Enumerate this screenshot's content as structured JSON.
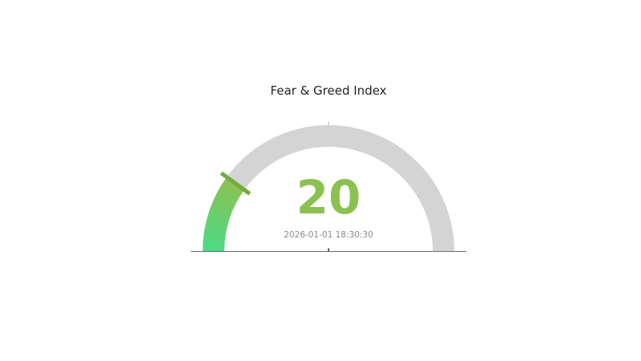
{
  "chart": {
    "title": "Fear & Greed Index",
    "value_label": "20",
    "timestamp": "2026-01-01 18:30:30"
  },
  "chart_data": {
    "type": "gauge",
    "title": "Fear & Greed Index",
    "value": 20,
    "min": 0,
    "max": 100,
    "start_angle_deg": 180,
    "end_angle_deg": 0,
    "subtitle": "2026-01-01 18:30:30",
    "legend": "none",
    "axis_tick_labels": "none",
    "colors": {
      "track": "#d4d4d4",
      "gradient_start": "#4cdb87",
      "gradient_end": "#8cc152",
      "value_tick": "#74aa41",
      "value_text": "#8cc152",
      "timestamp_text": "#8a8a8a",
      "title_text": "#222222",
      "baseline": "#6e6e6e",
      "pivot": "#5a5a5a",
      "top_notch": "#cfcfcf"
    }
  }
}
